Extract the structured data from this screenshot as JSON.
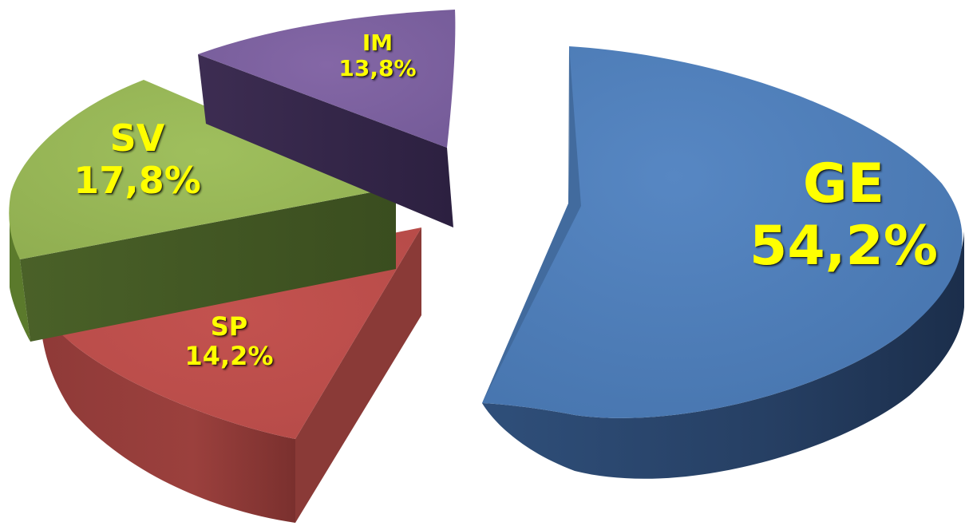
{
  "chart_data": {
    "type": "pie",
    "categories": [
      "GE",
      "SP",
      "SV",
      "IM"
    ],
    "values": [
      54.2,
      14.2,
      17.8,
      13.8
    ],
    "value_labels": [
      "54,2%",
      "14,2%",
      "17,8%",
      "13,8%"
    ],
    "colors": [
      "#4F81BD",
      "#C0504D",
      "#9BBB59",
      "#8064A2"
    ],
    "style": "3D exploded pie",
    "legend": "none",
    "title": ""
  }
}
